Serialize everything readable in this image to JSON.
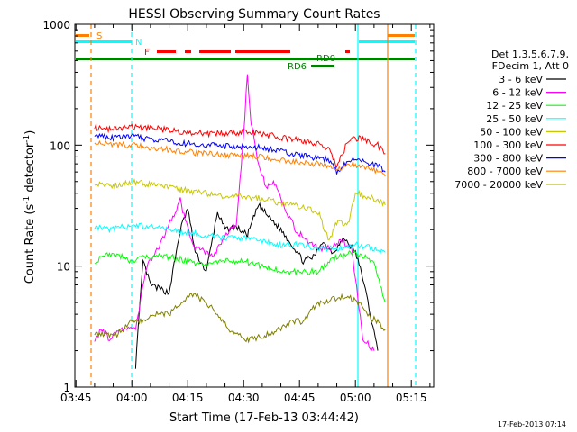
{
  "chart_data": {
    "type": "line",
    "title": "HESSI Observing Summary Count Rates",
    "xlabel": "Start Time (17-Feb-13 03:44:42)",
    "ylabel_main": "Count Rate (s",
    "ylabel_sup1": "-1",
    "ylabel_mid": " detector",
    "ylabel_sup2": "-1",
    "ylabel_end": ")",
    "footer": "17-Feb-2013 07:14",
    "yscale": "log",
    "ylim": [
      1,
      1000
    ],
    "xlim": [
      "03:44:42",
      "05:21:00"
    ],
    "x_ticks": [
      "03:45",
      "04:00",
      "04:15",
      "04:30",
      "04:45",
      "05:00",
      "05:15"
    ],
    "x_tick_minutes": [
      225,
      240,
      255,
      270,
      285,
      300,
      315
    ],
    "y_ticks": [
      "1",
      "10",
      "100",
      "1000"
    ],
    "y_tick_values": [
      1,
      10,
      100,
      1000
    ],
    "legend_header": [
      "Det 1,3,5,6,7,9,",
      "FDecim 1, Att 0"
    ],
    "legend_position": "right",
    "series": [
      {
        "name": "3 - 6 keV",
        "color": "#000000",
        "x": [
          241,
          243,
          245,
          250,
          253,
          255,
          257,
          260,
          263,
          265,
          268,
          271,
          274,
          277,
          280,
          283,
          286,
          289,
          291,
          294,
          297,
          300,
          302,
          304,
          306
        ],
        "values": [
          1.5,
          11,
          7,
          6,
          20,
          30,
          13,
          9,
          28,
          20,
          21,
          18,
          32,
          25,
          20,
          15,
          11,
          12,
          16,
          13,
          17,
          13,
          8,
          4,
          2
        ]
      },
      {
        "name": "6 - 12 keV",
        "color": "#ff00ff",
        "x": [
          230,
          232,
          234,
          236,
          238,
          241,
          244,
          247,
          250,
          253,
          255,
          257,
          260,
          262,
          265,
          268,
          270,
          271,
          272,
          274,
          276,
          278,
          281,
          284,
          287,
          290,
          293,
          296,
          299,
          302,
          305
        ],
        "values": [
          2.5,
          3,
          2.5,
          3,
          3,
          3,
          10,
          14,
          22,
          35,
          20,
          14,
          13,
          12,
          18,
          22,
          120,
          400,
          150,
          70,
          45,
          50,
          30,
          20,
          16,
          14,
          14,
          16,
          14,
          2.5,
          2
        ]
      },
      {
        "name": "12 - 25 keV",
        "color": "#00ff00",
        "x": [
          230,
          235,
          240,
          245,
          250,
          255,
          260,
          265,
          270,
          275,
          280,
          285,
          290,
          295,
          300,
          302,
          305,
          308
        ],
        "values": [
          11,
          13,
          11,
          12,
          12,
          11,
          10,
          11,
          11,
          10,
          9,
          9,
          9,
          12,
          13,
          12,
          11,
          5
        ]
      },
      {
        "name": "25 - 50 keV",
        "color": "#00ffff",
        "x": [
          230,
          235,
          240,
          245,
          250,
          255,
          260,
          265,
          270,
          275,
          280,
          285,
          290,
          295,
          300,
          305,
          308
        ],
        "values": [
          21,
          20,
          22,
          21,
          20,
          19,
          18,
          17,
          17,
          16,
          15,
          15,
          14,
          14,
          15,
          14,
          13
        ]
      },
      {
        "name": "50 - 100 keV",
        "color": "#c8c800",
        "x": [
          230,
          235,
          240,
          245,
          250,
          255,
          260,
          265,
          270,
          275,
          280,
          285,
          290,
          293,
          295,
          298,
          300,
          303,
          306,
          308
        ],
        "values": [
          48,
          46,
          50,
          47,
          45,
          42,
          40,
          38,
          38,
          36,
          33,
          31,
          28,
          16,
          23,
          22,
          40,
          38,
          35,
          32
        ]
      },
      {
        "name": "100 - 300 keV",
        "color": "#ff0000",
        "x": [
          230,
          235,
          240,
          245,
          250,
          255,
          260,
          265,
          270,
          275,
          280,
          285,
          290,
          293,
          295,
          298,
          301,
          303,
          306,
          308
        ],
        "values": [
          140,
          135,
          140,
          138,
          133,
          128,
          125,
          125,
          128,
          125,
          115,
          110,
          102,
          90,
          65,
          110,
          115,
          108,
          100,
          85
        ]
      },
      {
        "name": "300 - 800 keV",
        "color": "#0000ff",
        "x": [
          230,
          235,
          240,
          245,
          250,
          255,
          260,
          265,
          270,
          275,
          280,
          285,
          290,
          293,
          295,
          298,
          301,
          303,
          306,
          308
        ],
        "values": [
          120,
          115,
          118,
          112,
          108,
          103,
          100,
          98,
          98,
          95,
          88,
          82,
          78,
          75,
          60,
          75,
          75,
          72,
          68,
          60
        ]
      },
      {
        "name": "800 - 7000 keV",
        "color": "#ff8000",
        "x": [
          230,
          235,
          240,
          245,
          250,
          255,
          260,
          265,
          270,
          275,
          280,
          285,
          290,
          293,
          295,
          298,
          301,
          303,
          306,
          308
        ],
        "values": [
          105,
          100,
          100,
          95,
          92,
          88,
          85,
          82,
          82,
          80,
          75,
          72,
          70,
          68,
          62,
          70,
          68,
          65,
          60,
          55
        ]
      },
      {
        "name": "7000 - 20000 keV",
        "color": "#808000",
        "x": [
          230,
          233,
          236,
          240,
          243,
          246,
          250,
          253,
          256,
          260,
          263,
          266,
          270,
          273,
          276,
          280,
          283,
          286,
          290,
          292,
          295,
          298,
          301,
          303,
          306,
          308
        ],
        "values": [
          2.7,
          2.7,
          2.7,
          3.5,
          3.5,
          4,
          4,
          5,
          6,
          5,
          4,
          3,
          2.5,
          2.5,
          2.7,
          3,
          3.5,
          3.5,
          5,
          5,
          5.5,
          5.5,
          5,
          4,
          3.5,
          3
        ]
      }
    ],
    "annotations": [
      {
        "label": "S",
        "color": "#ff8000"
      },
      {
        "label": "N",
        "color": "#00ffff"
      },
      {
        "label": "F",
        "color": "#ff0000"
      },
      {
        "label": "RD0",
        "color": "#008000"
      },
      {
        "label": "RD6",
        "color": "#008000"
      }
    ]
  }
}
